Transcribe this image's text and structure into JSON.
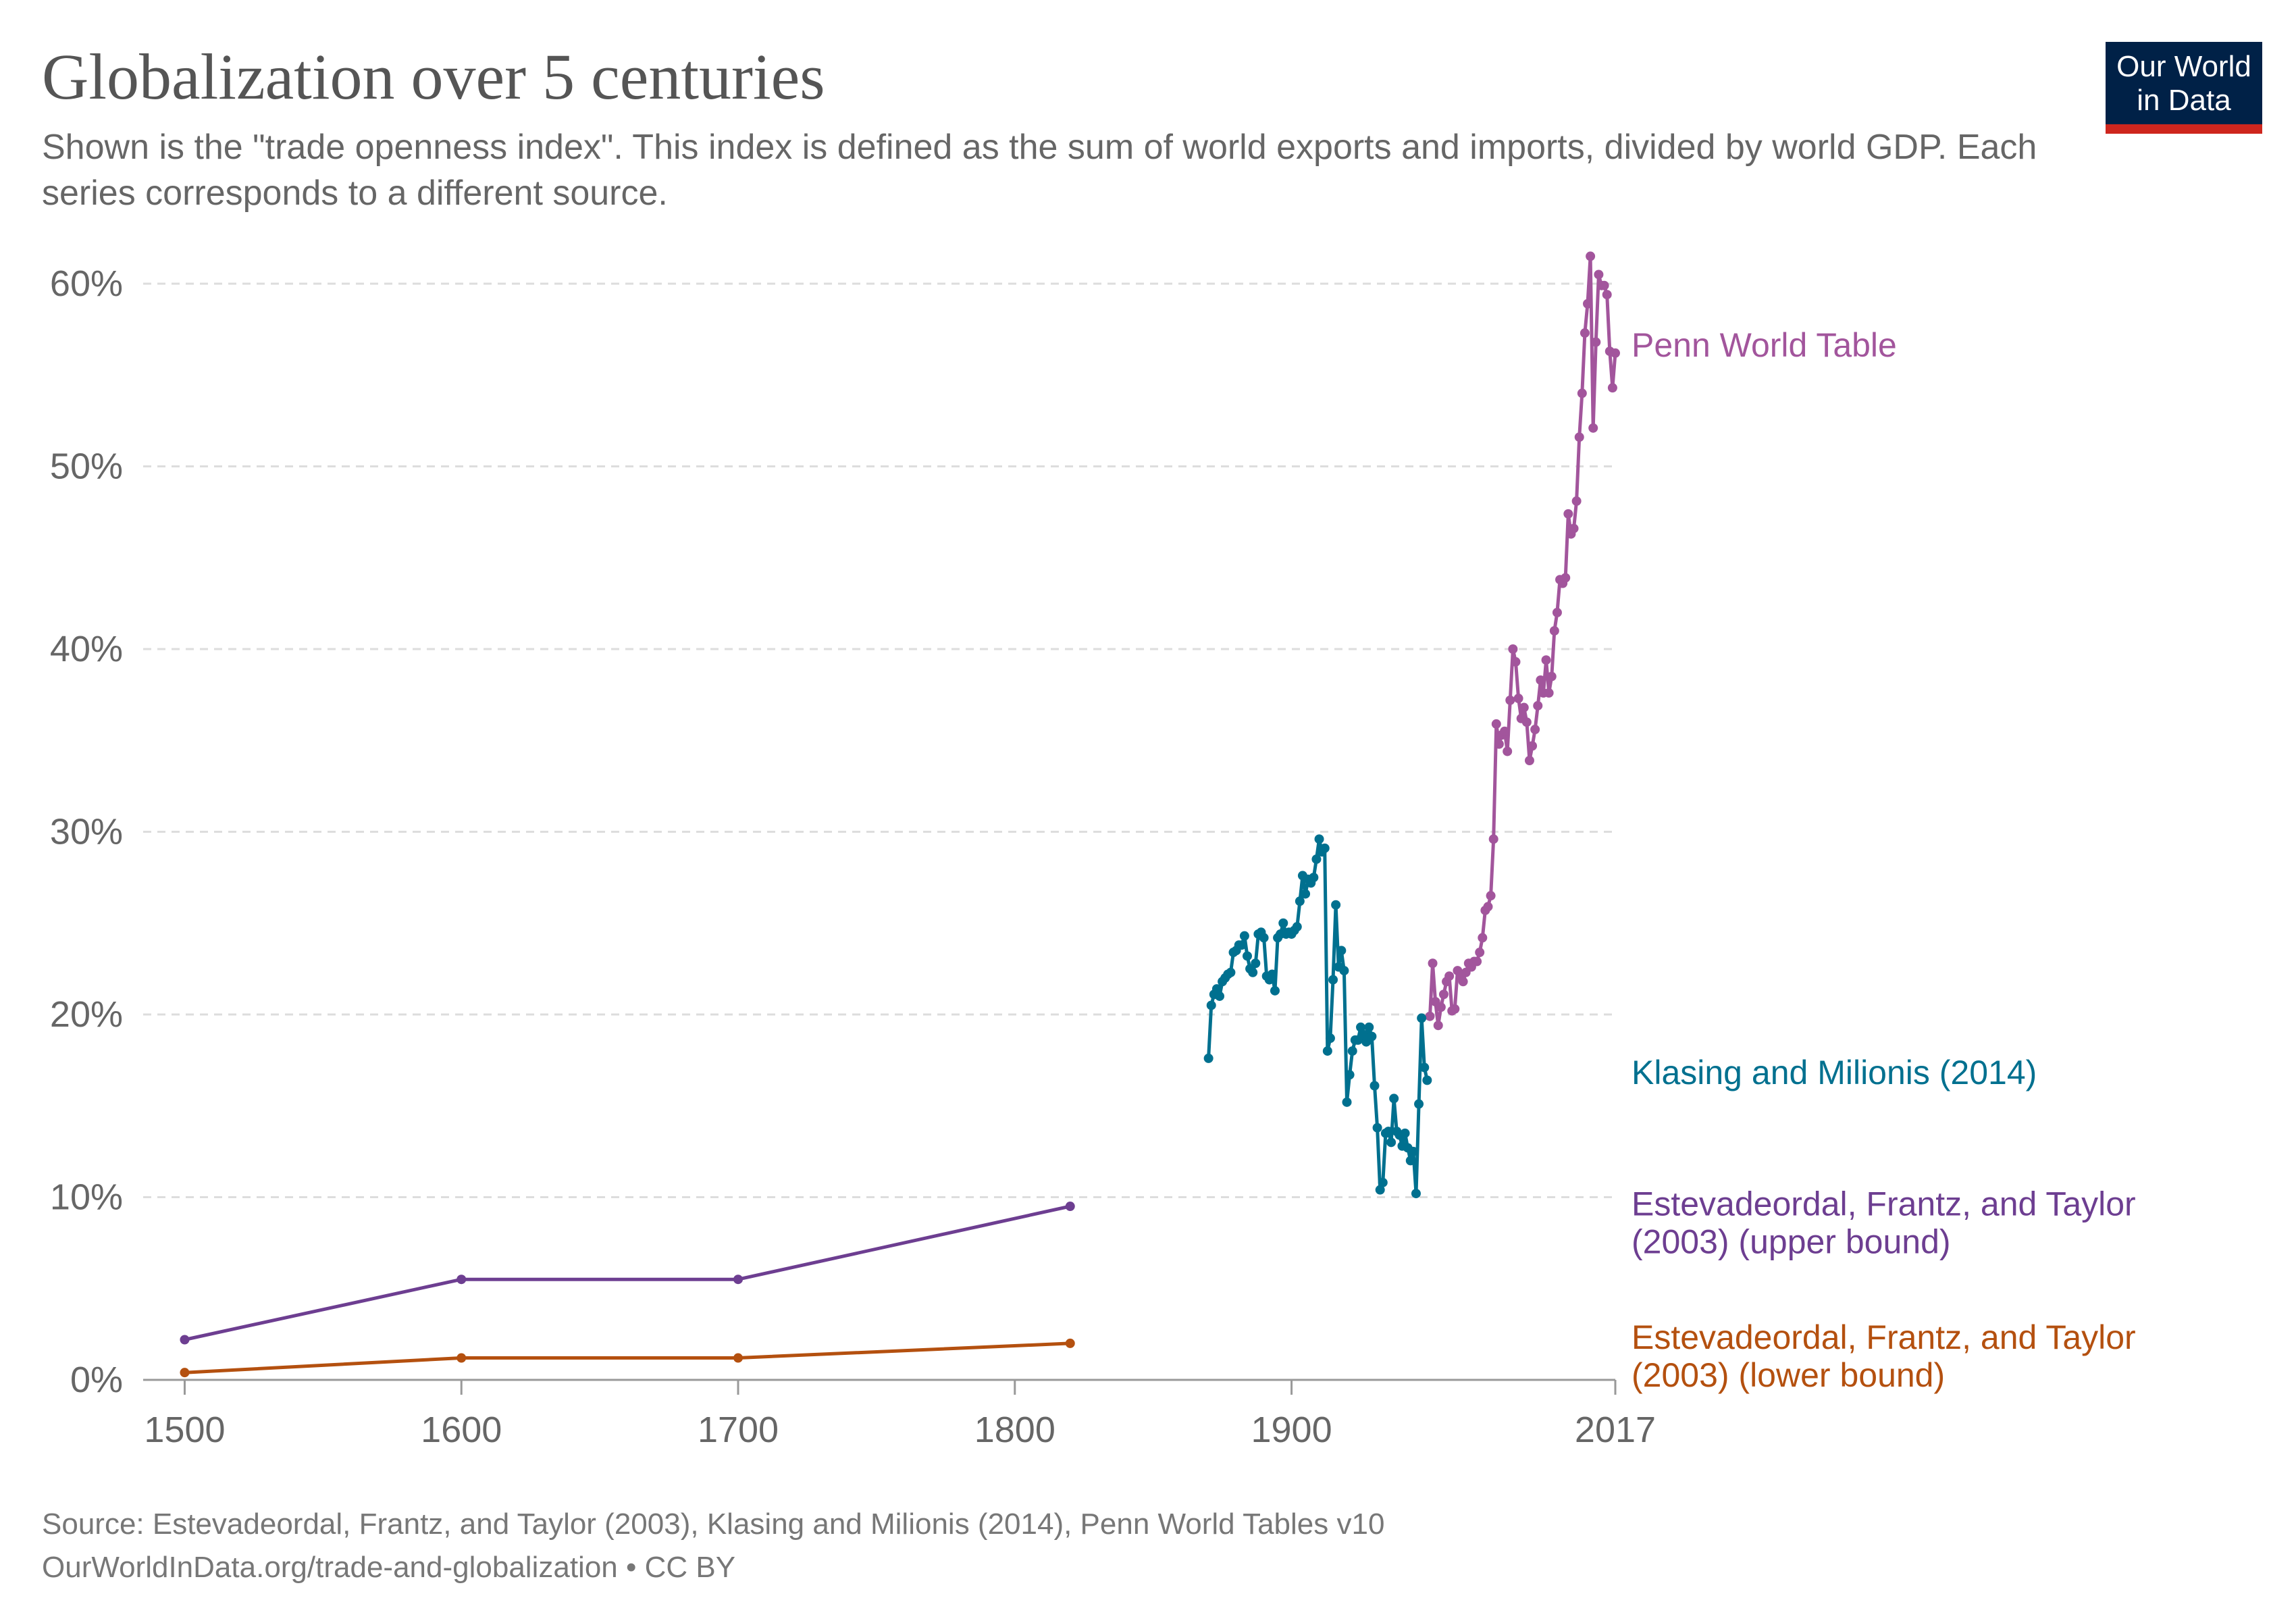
{
  "header": {
    "title": "Globalization over 5 centuries",
    "subtitle": "Shown is the \"trade openness index\". This index is defined as the sum of world exports and imports, divided by world GDP. Each series corresponds to a different source.",
    "logo_line1": "Our World",
    "logo_line2": "in Data"
  },
  "footer": {
    "source": "Source: Estevadeordal, Frantz, and Taylor (2003), Klasing and Milionis (2014), Penn World Tables v10",
    "link": "OurWorldInData.org/trade-and-globalization • CC BY"
  },
  "colors": {
    "penn": "#a2559c",
    "klasing": "#00708f",
    "upper": "#6d3e91",
    "lower": "#b4500f",
    "grid": "#dddddd",
    "axis_text": "#666666",
    "logo_bg": "#002147",
    "logo_bar": "#ce261e"
  },
  "chart_data": {
    "type": "line",
    "xlim": [
      1485,
      2017
    ],
    "ylim": [
      0,
      60
    ],
    "x_ticks": [
      {
        "value": 1500,
        "label": "1500"
      },
      {
        "value": 1600,
        "label": "1600"
      },
      {
        "value": 1700,
        "label": "1700"
      },
      {
        "value": 1800,
        "label": "1800"
      },
      {
        "value": 1900,
        "label": "1900"
      },
      {
        "value": 2017,
        "label": "2017"
      }
    ],
    "y_ticks": [
      {
        "value": 0,
        "label": "0%"
      },
      {
        "value": 10,
        "label": "10%"
      },
      {
        "value": 20,
        "label": "20%"
      },
      {
        "value": 30,
        "label": "30%"
      },
      {
        "value": 40,
        "label": "40%"
      },
      {
        "value": 50,
        "label": "50%"
      },
      {
        "value": 60,
        "label": "60%"
      }
    ],
    "grid": true,
    "legend_placement": "right (inline labels)",
    "series": [
      {
        "name": "Penn World Table",
        "color_key": "penn",
        "label_lines": [
          "Penn World Table"
        ],
        "label_y": 56,
        "points": [
          [
            1950,
            19.9
          ],
          [
            1951,
            22.8
          ],
          [
            1952,
            20.7
          ],
          [
            1953,
            19.4
          ],
          [
            1954,
            20.4
          ],
          [
            1955,
            21.1
          ],
          [
            1956,
            21.8
          ],
          [
            1957,
            22.1
          ],
          [
            1958,
            20.2
          ],
          [
            1959,
            20.3
          ],
          [
            1960,
            22.4
          ],
          [
            1961,
            22.1
          ],
          [
            1962,
            21.8
          ],
          [
            1963,
            22.3
          ],
          [
            1964,
            22.8
          ],
          [
            1965,
            22.6
          ],
          [
            1966,
            22.9
          ],
          [
            1967,
            22.9
          ],
          [
            1968,
            23.4
          ],
          [
            1969,
            24.2
          ],
          [
            1970,
            25.7
          ],
          [
            1971,
            25.9
          ],
          [
            1972,
            26.5
          ],
          [
            1973,
            29.6
          ],
          [
            1974,
            35.9
          ],
          [
            1975,
            34.8
          ],
          [
            1976,
            35.3
          ],
          [
            1977,
            35.5
          ],
          [
            1978,
            34.4
          ],
          [
            1979,
            37.2
          ],
          [
            1980,
            40.0
          ],
          [
            1981,
            39.3
          ],
          [
            1982,
            37.3
          ],
          [
            1983,
            36.2
          ],
          [
            1984,
            36.8
          ],
          [
            1985,
            36.0
          ],
          [
            1986,
            33.9
          ],
          [
            1987,
            34.7
          ],
          [
            1988,
            35.6
          ],
          [
            1989,
            36.9
          ],
          [
            1990,
            38.3
          ],
          [
            1991,
            37.6
          ],
          [
            1992,
            39.4
          ],
          [
            1993,
            37.6
          ],
          [
            1994,
            38.5
          ],
          [
            1995,
            41.0
          ],
          [
            1996,
            42.0
          ],
          [
            1997,
            43.8
          ],
          [
            1998,
            43.6
          ],
          [
            1999,
            43.9
          ],
          [
            2000,
            47.4
          ],
          [
            2001,
            46.3
          ],
          [
            2002,
            46.6
          ],
          [
            2003,
            48.1
          ],
          [
            2004,
            51.6
          ],
          [
            2005,
            54.0
          ],
          [
            2006,
            57.3
          ],
          [
            2007,
            58.9
          ],
          [
            2008,
            61.5
          ],
          [
            2009,
            52.1
          ],
          [
            2010,
            56.8
          ],
          [
            2011,
            60.5
          ],
          [
            2012,
            59.9
          ],
          [
            2013,
            59.9
          ],
          [
            2014,
            59.4
          ],
          [
            2015,
            56.3
          ],
          [
            2016,
            54.3
          ],
          [
            2017,
            56.2
          ]
        ]
      },
      {
        "name": "Klasing and Milionis (2014)",
        "color_key": "klasing",
        "label_lines": [
          "Klasing and Milionis (2014)"
        ],
        "label_y": 16.2,
        "points": [
          [
            1870,
            17.6
          ],
          [
            1871,
            20.5
          ],
          [
            1872,
            21.1
          ],
          [
            1873,
            21.4
          ],
          [
            1874,
            21.0
          ],
          [
            1875,
            21.8
          ],
          [
            1876,
            22.0
          ],
          [
            1877,
            22.2
          ],
          [
            1878,
            22.3
          ],
          [
            1879,
            23.4
          ],
          [
            1880,
            23.5
          ],
          [
            1881,
            23.8
          ],
          [
            1882,
            23.8
          ],
          [
            1883,
            24.3
          ],
          [
            1884,
            23.2
          ],
          [
            1885,
            22.5
          ],
          [
            1886,
            22.3
          ],
          [
            1887,
            22.8
          ],
          [
            1888,
            24.4
          ],
          [
            1889,
            24.5
          ],
          [
            1890,
            24.2
          ],
          [
            1891,
            22.1
          ],
          [
            1892,
            21.9
          ],
          [
            1893,
            22.2
          ],
          [
            1894,
            21.3
          ],
          [
            1895,
            24.2
          ],
          [
            1896,
            24.4
          ],
          [
            1897,
            25.0
          ],
          [
            1898,
            24.4
          ],
          [
            1899,
            24.5
          ],
          [
            1900,
            24.4
          ],
          [
            1901,
            24.6
          ],
          [
            1902,
            24.8
          ],
          [
            1903,
            26.2
          ],
          [
            1904,
            27.6
          ],
          [
            1905,
            26.6
          ],
          [
            1906,
            27.4
          ],
          [
            1907,
            27.2
          ],
          [
            1908,
            27.5
          ],
          [
            1909,
            28.5
          ],
          [
            1910,
            29.6
          ],
          [
            1911,
            28.9
          ],
          [
            1912,
            29.1
          ],
          [
            1913,
            18.0
          ],
          [
            1914,
            18.7
          ],
          [
            1915,
            21.9
          ],
          [
            1916,
            26.0
          ],
          [
            1917,
            22.6
          ],
          [
            1918,
            23.5
          ],
          [
            1919,
            22.4
          ],
          [
            1920,
            15.2
          ],
          [
            1921,
            16.7
          ],
          [
            1922,
            18.0
          ],
          [
            1923,
            18.6
          ],
          [
            1924,
            18.6
          ],
          [
            1925,
            19.3
          ],
          [
            1926,
            18.9
          ],
          [
            1927,
            18.5
          ],
          [
            1928,
            19.3
          ],
          [
            1929,
            18.8
          ],
          [
            1930,
            16.1
          ],
          [
            1931,
            13.8
          ],
          [
            1932,
            10.4
          ],
          [
            1933,
            10.8
          ],
          [
            1934,
            13.5
          ],
          [
            1935,
            13.6
          ],
          [
            1936,
            13.0
          ],
          [
            1937,
            15.4
          ],
          [
            1938,
            13.6
          ],
          [
            1939,
            13.4
          ],
          [
            1940,
            12.8
          ],
          [
            1941,
            13.5
          ],
          [
            1942,
            12.7
          ],
          [
            1943,
            12.0
          ],
          [
            1944,
            12.5
          ],
          [
            1945,
            10.2
          ],
          [
            1946,
            15.1
          ],
          [
            1947,
            19.8
          ],
          [
            1948,
            17.1
          ],
          [
            1949,
            16.4
          ]
        ]
      },
      {
        "name": "Estevadeordal, Frantz, and Taylor (2003) (upper bound)",
        "color_key": "upper",
        "label_lines": [
          "Estevadeordal, Frantz, and Taylor",
          "(2003) (upper bound)"
        ],
        "label_y": 9.0,
        "points": [
          [
            1500,
            2.2
          ],
          [
            1600,
            5.5
          ],
          [
            1700,
            5.5
          ],
          [
            1820,
            9.5
          ]
        ]
      },
      {
        "name": "Estevadeordal, Frantz, and Taylor (2003) (lower bound)",
        "color_key": "lower",
        "label_lines": [
          "Estevadeordal, Frantz, and Taylor",
          "(2003) (lower bound)"
        ],
        "label_y": 1.7,
        "points": [
          [
            1500,
            0.4
          ],
          [
            1600,
            1.2
          ],
          [
            1700,
            1.2
          ],
          [
            1820,
            2.0
          ]
        ]
      }
    ]
  }
}
